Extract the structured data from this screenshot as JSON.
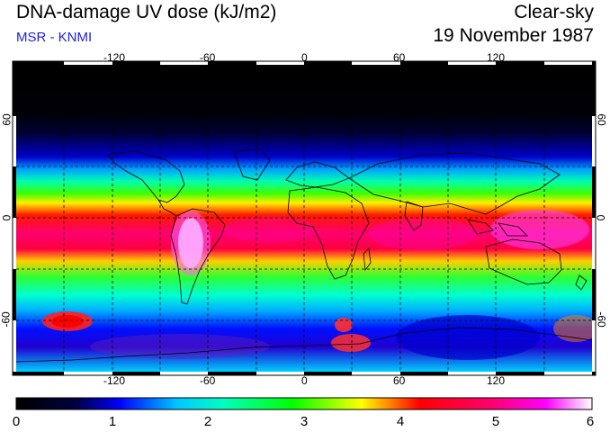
{
  "header": {
    "title": "DNA-damage UV dose (kJ/m2)",
    "subtitle": "MSR - KNMI",
    "condition": "Clear-sky",
    "date": "19 November 1987"
  },
  "map": {
    "projection": "equirectangular",
    "lon_range": [
      -180,
      180
    ],
    "lat_range": [
      -90,
      90
    ],
    "lon_ticks": [
      "-120",
      "-60",
      "0",
      "60",
      "120"
    ],
    "lat_ticks": [
      "60",
      "0",
      "-60"
    ],
    "grid": true
  },
  "colorbar": {
    "min": 0,
    "max": 6,
    "labels": [
      "0",
      "1",
      "2",
      "3",
      "4",
      "5",
      "6"
    ],
    "colors": [
      "#000000",
      "#00003a",
      "#0000ff",
      "#00c8ff",
      "#00ffbf",
      "#00ff00",
      "#ffff00",
      "#ff0000",
      "#ff0066",
      "#ff00ff",
      "#ffffff"
    ]
  }
}
